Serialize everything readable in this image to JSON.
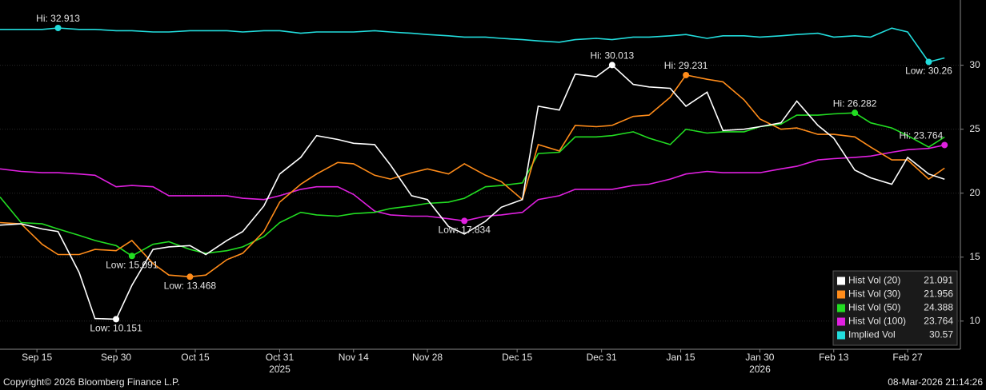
{
  "chart_data": {
    "type": "line",
    "x": [
      "2025-09-08",
      "2025-09-12",
      "2025-09-16",
      "2025-09-19",
      "2025-09-23",
      "2025-09-26",
      "2025-09-30",
      "2025-10-03",
      "2025-10-07",
      "2025-10-10",
      "2025-10-14",
      "2025-10-17",
      "2025-10-21",
      "2025-10-24",
      "2025-10-28",
      "2025-10-31",
      "2025-11-04",
      "2025-11-07",
      "2025-11-11",
      "2025-11-14",
      "2025-11-18",
      "2025-11-21",
      "2025-11-25",
      "2025-11-28",
      "2025-12-02",
      "2025-12-05",
      "2025-12-09",
      "2025-12-12",
      "2025-12-16",
      "2025-12-19",
      "2025-12-23",
      "2025-12-26",
      "2025-12-30",
      "2026-01-02",
      "2026-01-06",
      "2026-01-09",
      "2026-01-13",
      "2026-01-16",
      "2026-01-20",
      "2026-01-23",
      "2026-01-27",
      "2026-01-30",
      "2026-02-03",
      "2026-02-06",
      "2026-02-10",
      "2026-02-13",
      "2026-02-17",
      "2026-02-20",
      "2026-02-24",
      "2026-02-27",
      "2026-03-03",
      "2026-03-06"
    ],
    "series": [
      {
        "name": "Hist Vol (20)",
        "color": "#ffffff",
        "values": [
          17.5,
          17.6,
          17.2,
          17.0,
          13.8,
          10.2,
          10.151,
          12.8,
          15.6,
          15.8,
          15.9,
          15.2,
          16.3,
          17.0,
          19.0,
          21.5,
          22.8,
          24.5,
          24.2,
          23.9,
          23.8,
          22.2,
          19.8,
          19.5,
          17.4,
          16.8,
          17.8,
          18.9,
          19.5,
          26.8,
          26.5,
          29.3,
          29.1,
          30.013,
          28.5,
          28.3,
          28.2,
          26.8,
          27.9,
          24.9,
          25.0,
          25.2,
          25.5,
          27.2,
          25.3,
          24.3,
          21.8,
          21.2,
          20.7,
          22.8,
          21.5,
          21.091
        ],
        "markers": [
          {
            "label": "Low: 10.151",
            "x": "2025-09-30"
          },
          {
            "label": "Hi: 30.013",
            "x": "2026-01-02"
          }
        ]
      },
      {
        "name": "Hist Vol (30)",
        "color": "#ff8c1a",
        "values": [
          17.7,
          17.6,
          16.0,
          15.2,
          15.2,
          15.6,
          15.5,
          16.3,
          14.5,
          13.6,
          13.468,
          13.6,
          14.8,
          15.3,
          17.0,
          19.3,
          20.7,
          21.5,
          22.4,
          22.3,
          21.4,
          21.1,
          21.6,
          21.9,
          21.5,
          22.3,
          21.4,
          20.9,
          19.5,
          23.8,
          23.3,
          25.3,
          25.2,
          25.3,
          26.0,
          26.1,
          27.5,
          29.231,
          28.9,
          28.7,
          27.3,
          25.8,
          25.0,
          25.1,
          24.6,
          24.6,
          24.4,
          23.6,
          22.6,
          22.6,
          21.1,
          21.956
        ],
        "markers": [
          {
            "label": "Low: 13.468",
            "x": "2025-10-14"
          },
          {
            "label": "Hi: 29.231",
            "x": "2026-01-16"
          }
        ]
      },
      {
        "name": "Hist Vol (50)",
        "color": "#22dd22",
        "values": [
          19.7,
          17.7,
          17.6,
          17.2,
          16.7,
          16.3,
          15.9,
          15.091,
          16.0,
          16.2,
          15.6,
          15.3,
          15.5,
          15.8,
          16.6,
          17.7,
          18.5,
          18.3,
          18.2,
          18.4,
          18.5,
          18.8,
          19.0,
          19.2,
          19.3,
          19.6,
          20.5,
          20.6,
          20.8,
          23.1,
          23.2,
          24.4,
          24.4,
          24.5,
          24.8,
          24.3,
          23.8,
          25.0,
          24.7,
          24.8,
          24.8,
          25.2,
          25.4,
          26.1,
          26.1,
          26.2,
          26.282,
          25.5,
          25.1,
          24.5,
          23.6,
          24.388
        ],
        "markers": [
          {
            "label": "Low: 15.091",
            "x": "2025-10-03"
          },
          {
            "label": "Hi: 26.282",
            "x": "2026-02-17"
          }
        ]
      },
      {
        "name": "Hist Vol (100)",
        "color": "#e020e0",
        "values": [
          21.9,
          21.7,
          21.6,
          21.6,
          21.5,
          21.4,
          20.5,
          20.6,
          20.5,
          19.8,
          19.8,
          19.8,
          19.8,
          19.6,
          19.5,
          19.8,
          20.3,
          20.5,
          20.5,
          19.9,
          18.6,
          18.3,
          18.2,
          18.2,
          18.0,
          17.834,
          18.2,
          18.3,
          18.5,
          19.5,
          19.8,
          20.3,
          20.3,
          20.3,
          20.6,
          20.7,
          21.1,
          21.5,
          21.7,
          21.6,
          21.6,
          21.6,
          21.9,
          22.1,
          22.6,
          22.7,
          22.8,
          22.9,
          23.2,
          23.4,
          23.5,
          23.764
        ],
        "markers": [
          {
            "label": "Low: 17.834",
            "x": "2025-12-05"
          },
          {
            "label": "Hi: 23.764",
            "x": "2026-03-06"
          }
        ]
      },
      {
        "name": "Implied Vol",
        "color": "#22dddd",
        "values": [
          32.8,
          32.8,
          32.8,
          32.913,
          32.8,
          32.8,
          32.7,
          32.7,
          32.6,
          32.6,
          32.7,
          32.7,
          32.7,
          32.6,
          32.7,
          32.7,
          32.5,
          32.6,
          32.6,
          32.6,
          32.7,
          32.6,
          32.5,
          32.4,
          32.3,
          32.2,
          32.2,
          32.1,
          32.0,
          31.9,
          31.8,
          32.0,
          32.1,
          32.0,
          32.2,
          32.2,
          32.3,
          32.4,
          32.1,
          32.3,
          32.3,
          32.2,
          32.3,
          32.4,
          32.5,
          32.2,
          32.3,
          32.2,
          32.9,
          32.6,
          30.26,
          30.57
        ],
        "markers": [
          {
            "label": "Hi: 32.913",
            "x": "2025-09-19"
          },
          {
            "label": "Low: 30.26",
            "x": "2026-03-03"
          }
        ]
      }
    ],
    "xlim": [
      "2025-09-08",
      "2026-03-09"
    ],
    "xticks": [
      {
        "value": "2025-09-15",
        "label": "Sep 15"
      },
      {
        "value": "2025-09-30",
        "label": "Sep 30"
      },
      {
        "value": "2025-10-15",
        "label": "Oct 15"
      },
      {
        "value": "2025-10-31",
        "label": "Oct 31"
      },
      {
        "value": "2025-11-14",
        "label": "Nov 14"
      },
      {
        "value": "2025-11-28",
        "label": "Nov 28"
      },
      {
        "value": "2025-12-15",
        "label": "Dec 15"
      },
      {
        "value": "2025-12-31",
        "label": "Dec 31"
      },
      {
        "value": "2026-01-15",
        "label": "Jan 15"
      },
      {
        "value": "2026-01-30",
        "label": "Jan 30"
      },
      {
        "value": "2026-02-13",
        "label": "Feb 13"
      },
      {
        "value": "2026-02-27",
        "label": "Feb 27"
      }
    ],
    "year_ticks": [
      {
        "value": "2025-10-31",
        "label": "2025"
      },
      {
        "value": "2026-01-30",
        "label": "2026"
      }
    ],
    "ylim": [
      7.8,
      35.1
    ],
    "yticks": [
      10,
      15,
      20,
      25,
      30
    ],
    "grid": true,
    "legend": "lower right",
    "source": "Copyright© 2026 Bloomberg Finance L.P.",
    "timestamp": "08-Mar-2026 21:14:26"
  }
}
